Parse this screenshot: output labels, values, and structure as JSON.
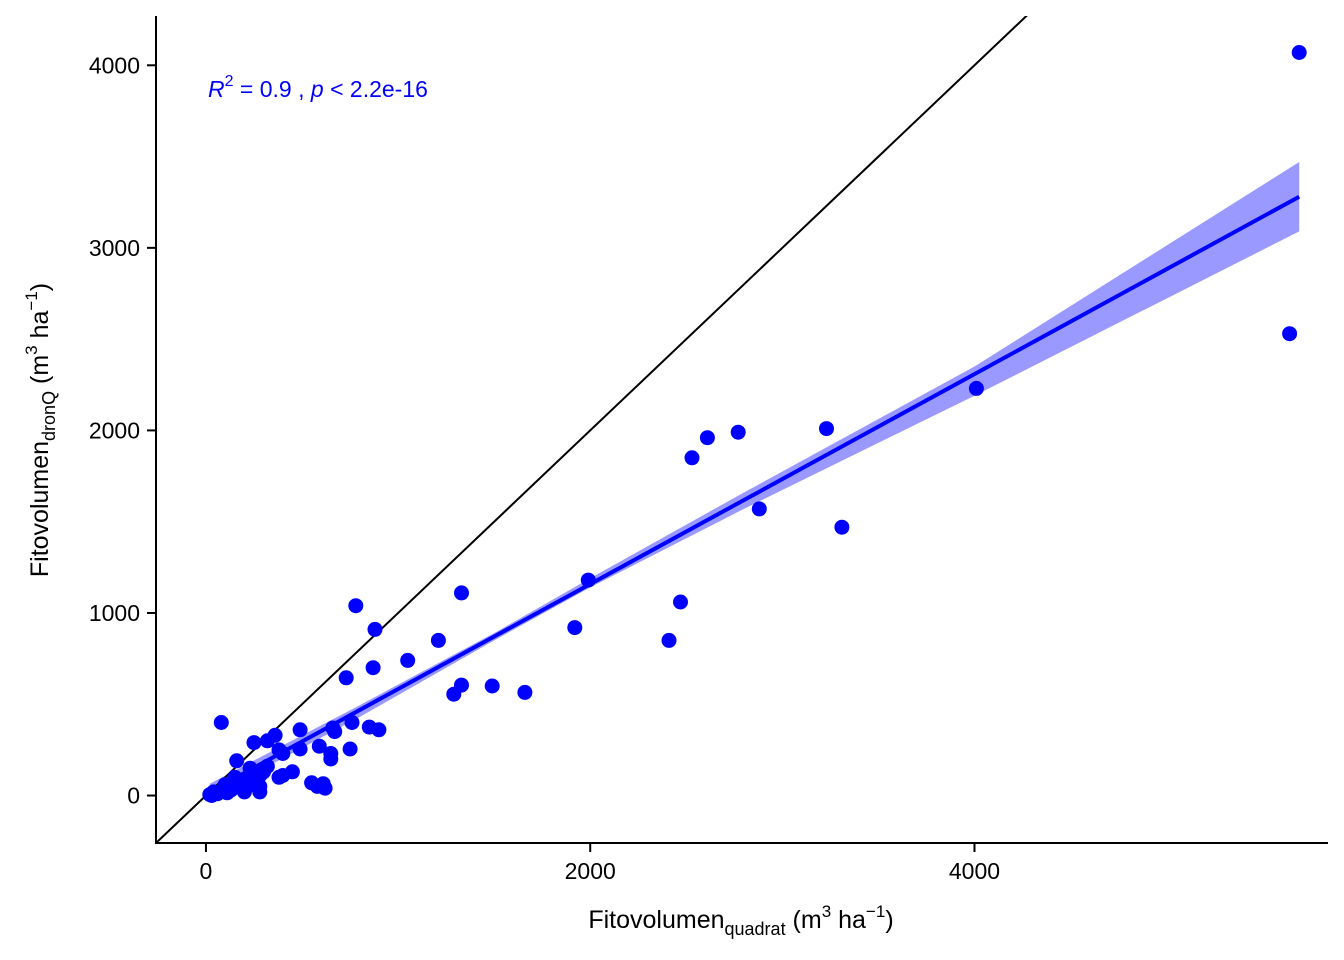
{
  "chart_data": {
    "type": "scatter",
    "title": "",
    "xlabel": {
      "main": "Fitovolumen",
      "sub": "quadrat",
      "unit_open": " (m",
      "unit_sup1": "3",
      "unit_mid": " ha",
      "unit_sup2": "−1",
      "unit_close": ")"
    },
    "ylabel": {
      "main": "Fitovolumen",
      "sub": "dronQ",
      "unit_open": " (m",
      "unit_sup1": "3",
      "unit_mid": " ha",
      "unit_sup2": "−1",
      "unit_close": ")"
    },
    "xlim": [
      -260,
      5840
    ],
    "ylim": [
      -260,
      4270
    ],
    "x_ticks": [
      0,
      2000,
      4000
    ],
    "x_tick_labels": [
      "0",
      "2000",
      "4000"
    ],
    "y_ticks": [
      0,
      1000,
      2000,
      3000,
      4000
    ],
    "y_tick_labels": [
      "0",
      "1000",
      "2000",
      "3000",
      "4000"
    ],
    "grid": false,
    "annotation": {
      "r": "R",
      "r_sup": "2",
      "eq": " = 0.9 , ",
      "p": "p",
      "p_rest": " < 2.2e-16"
    },
    "colors": {
      "points": "#0000ff",
      "fit_line": "#0000ff",
      "ribbon": "#9999ff",
      "identity_line": "#000000",
      "axis": "#000000"
    },
    "identity_line": {
      "slope": 1,
      "intercept": 0
    },
    "regression": {
      "x_range": [
        20,
        5690
      ],
      "fit_at_ends": [
        20,
        3280
      ],
      "ci": [
        {
          "x": 20,
          "lower": -10,
          "upper": 65
        },
        {
          "x": 800,
          "lower": 430,
          "upper": 495
        },
        {
          "x": 1500,
          "lower": 850,
          "upper": 890
        },
        {
          "x": 2000,
          "lower": 1140,
          "upper": 1190
        },
        {
          "x": 2800,
          "lower": 1570,
          "upper": 1660
        },
        {
          "x": 4000,
          "lower": 2190,
          "upper": 2350
        },
        {
          "x": 5690,
          "lower": 3090,
          "upper": 3470
        }
      ]
    },
    "points": [
      [
        5690,
        4070
      ],
      [
        5640,
        2530
      ],
      [
        4010,
        2230
      ],
      [
        3230,
        2010
      ],
      [
        3310,
        1470
      ],
      [
        2880,
        1570
      ],
      [
        2770,
        1990
      ],
      [
        2610,
        1960
      ],
      [
        2530,
        1850
      ],
      [
        2470,
        1060
      ],
      [
        2410,
        850
      ],
      [
        1990,
        1180
      ],
      [
        1920,
        920
      ],
      [
        1660,
        565
      ],
      [
        1490,
        600
      ],
      [
        1330,
        1110
      ],
      [
        1330,
        605
      ],
      [
        1290,
        555
      ],
      [
        1210,
        850
      ],
      [
        1050,
        740
      ],
      [
        880,
        910
      ],
      [
        870,
        700
      ],
      [
        900,
        360
      ],
      [
        850,
        375
      ],
      [
        780,
        1040
      ],
      [
        760,
        400
      ],
      [
        750,
        255
      ],
      [
        730,
        645
      ],
      [
        660,
        370
      ],
      [
        670,
        350
      ],
      [
        650,
        230
      ],
      [
        650,
        200
      ],
      [
        620,
        40
      ],
      [
        590,
        270
      ],
      [
        610,
        65
      ],
      [
        580,
        50
      ],
      [
        550,
        70
      ],
      [
        490,
        255
      ],
      [
        490,
        360
      ],
      [
        450,
        130
      ],
      [
        400,
        110
      ],
      [
        380,
        100
      ],
      [
        400,
        230
      ],
      [
        360,
        330
      ],
      [
        380,
        250
      ],
      [
        320,
        300
      ],
      [
        320,
        160
      ],
      [
        300,
        130
      ],
      [
        280,
        110
      ],
      [
        280,
        50
      ],
      [
        280,
        20
      ],
      [
        250,
        290
      ],
      [
        260,
        90
      ],
      [
        230,
        150
      ],
      [
        220,
        80
      ],
      [
        200,
        20
      ],
      [
        160,
        190
      ],
      [
        170,
        70
      ],
      [
        140,
        50
      ],
      [
        130,
        30
      ],
      [
        110,
        15
      ],
      [
        100,
        60
      ],
      [
        90,
        30
      ],
      [
        80,
        400
      ],
      [
        60,
        10
      ],
      [
        40,
        20
      ],
      [
        20,
        5
      ],
      [
        30,
        0
      ],
      [
        150,
        100
      ],
      [
        240,
        60
      ]
    ]
  }
}
